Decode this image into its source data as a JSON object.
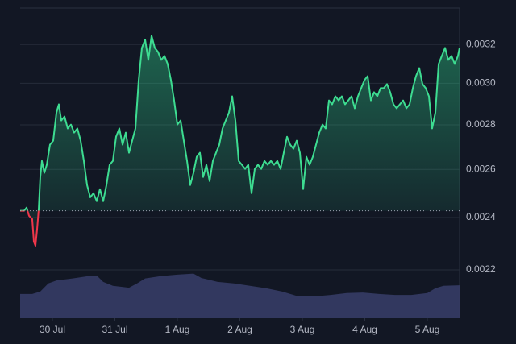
{
  "chart_data": {
    "type": "line",
    "log_scale": true,
    "grid": true,
    "baseline": 0.002427,
    "xlim": [
      -0.516,
      6.516
    ],
    "xticks": [
      {
        "value": 0,
        "label": "30 Jul"
      },
      {
        "value": 1,
        "label": "31 Jul"
      },
      {
        "value": 2,
        "label": "1 Aug"
      },
      {
        "value": 3,
        "label": "2 Aug"
      },
      {
        "value": 4,
        "label": "3 Aug"
      },
      {
        "value": 5,
        "label": "4 Aug"
      },
      {
        "value": 6,
        "label": "5 Aug"
      }
    ],
    "ylim": [
      0.00203,
      0.0034
    ],
    "yticks": [
      0.0022,
      0.0024,
      0.0026,
      0.0028,
      {
        "value": 0.003,
        "label": "0.0030"
      },
      0.0032
    ],
    "y2lim": [
      0,
      640
    ],
    "series": [
      {
        "color": "#3ddc91",
        "down_color": "#f0364a",
        "x": [
          -0.516,
          -0.452,
          -0.413,
          -0.374,
          -0.323,
          -0.297,
          -0.271,
          -0.245,
          -0.219,
          -0.194,
          -0.168,
          -0.129,
          -0.09,
          -0.039,
          0.013,
          0.065,
          0.103,
          0.142,
          0.194,
          0.245,
          0.297,
          0.348,
          0.4,
          0.452,
          0.503,
          0.555,
          0.606,
          0.658,
          0.71,
          0.761,
          0.813,
          0.865,
          0.916,
          0.968,
          1.019,
          1.071,
          1.123,
          1.174,
          1.226,
          1.277,
          1.329,
          1.381,
          1.432,
          1.484,
          1.535,
          1.587,
          1.639,
          1.69,
          1.742,
          1.794,
          1.845,
          1.897,
          1.948,
          2.0,
          2.052,
          2.103,
          2.155,
          2.206,
          2.258,
          2.31,
          2.361,
          2.413,
          2.465,
          2.516,
          2.568,
          2.619,
          2.671,
          2.723,
          2.774,
          2.826,
          2.877,
          2.929,
          2.981,
          3.032,
          3.084,
          3.135,
          3.187,
          3.239,
          3.29,
          3.342,
          3.394,
          3.445,
          3.497,
          3.548,
          3.6,
          3.652,
          3.703,
          3.755,
          3.806,
          3.858,
          3.91,
          3.961,
          4.013,
          4.065,
          4.116,
          4.168,
          4.219,
          4.271,
          4.323,
          4.374,
          4.426,
          4.477,
          4.529,
          4.581,
          4.632,
          4.684,
          4.735,
          4.787,
          4.839,
          4.89,
          4.942,
          4.994,
          5.045,
          5.097,
          5.148,
          5.2,
          5.252,
          5.303,
          5.355,
          5.406,
          5.458,
          5.51,
          5.561,
          5.613,
          5.665,
          5.716,
          5.768,
          5.819,
          5.871,
          5.923,
          5.974,
          6.026,
          6.077,
          6.129,
          6.181,
          6.232,
          6.284,
          6.335,
          6.387,
          6.439,
          6.49,
          6.516
        ],
        "values": [
          0.002427,
          0.002427,
          0.00244,
          0.002407,
          0.002394,
          0.002306,
          0.00229,
          0.002353,
          0.002433,
          0.002567,
          0.002637,
          0.002585,
          0.00262,
          0.002709,
          0.002727,
          0.002858,
          0.002897,
          0.00282,
          0.002839,
          0.002783,
          0.002801,
          0.002764,
          0.002783,
          0.002727,
          0.002637,
          0.002533,
          0.002482,
          0.002499,
          0.002466,
          0.002516,
          0.002466,
          0.002533,
          0.00262,
          0.002637,
          0.002745,
          0.002783,
          0.002709,
          0.002764,
          0.002673,
          0.002727,
          0.002783,
          0.003016,
          0.003182,
          0.003226,
          0.003119,
          0.003247,
          0.003182,
          0.003161,
          0.003119,
          0.00314,
          0.003098,
          0.003016,
          0.002916,
          0.002801,
          0.00282,
          0.002727,
          0.002637,
          0.002533,
          0.002585,
          0.002655,
          0.002673,
          0.002567,
          0.00262,
          0.00255,
          0.002637,
          0.002673,
          0.002709,
          0.002783,
          0.00282,
          0.002858,
          0.002936,
          0.00282,
          0.002637,
          0.00262,
          0.002602,
          0.00262,
          0.002499,
          0.002602,
          0.00262,
          0.002602,
          0.002637,
          0.00262,
          0.002637,
          0.00262,
          0.002637,
          0.002602,
          0.002673,
          0.002745,
          0.002709,
          0.002691,
          0.002727,
          0.002673,
          0.002516,
          0.002655,
          0.00262,
          0.002655,
          0.002709,
          0.002764,
          0.002801,
          0.002783,
          0.002916,
          0.002897,
          0.002936,
          0.002916,
          0.002936,
          0.002897,
          0.002916,
          0.002936,
          0.002878,
          0.002936,
          0.002976,
          0.003016,
          0.003036,
          0.002916,
          0.002956,
          0.002936,
          0.002976,
          0.002976,
          0.002996,
          0.002956,
          0.002897,
          0.002878,
          0.002897,
          0.002916,
          0.002878,
          0.002897,
          0.002976,
          0.003036,
          0.003077,
          0.002996,
          0.002976,
          0.002936,
          0.002783,
          0.002858,
          0.003098,
          0.00314,
          0.003182,
          0.003119,
          0.00314,
          0.003098,
          0.00314,
          0.003182
        ]
      },
      {
        "type": "area",
        "axis": "y2",
        "color": "#363c66",
        "x": [
          -0.516,
          -0.323,
          -0.194,
          -0.065,
          0.065,
          0.323,
          0.581,
          0.71,
          0.813,
          0.968,
          1.226,
          1.355,
          1.484,
          1.742,
          2.0,
          2.258,
          2.387,
          2.645,
          2.903,
          3.161,
          3.419,
          3.677,
          3.935,
          4.194,
          4.452,
          4.71,
          4.968,
          5.226,
          5.484,
          5.742,
          6.0,
          6.129,
          6.258,
          6.516
        ],
        "values": [
          50,
          50,
          55,
          72,
          78,
          82,
          87,
          88,
          75,
          67,
          63,
          72,
          82,
          87,
          90,
          92,
          83,
          75,
          72,
          67,
          62,
          55,
          45,
          45,
          48,
          52,
          53,
          50,
          48,
          48,
          52,
          62,
          67,
          68
        ]
      }
    ]
  }
}
